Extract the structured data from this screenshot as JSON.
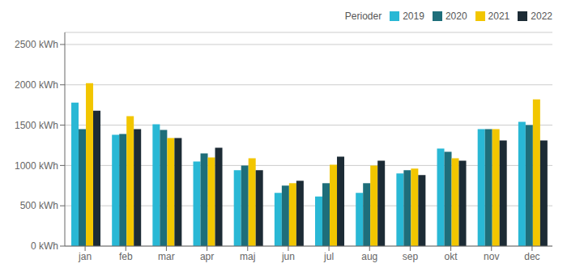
{
  "chart_data": {
    "type": "bar",
    "legend_title": "Perioder",
    "categories": [
      "jan",
      "feb",
      "mar",
      "apr",
      "maj",
      "jun",
      "jul",
      "aug",
      "sep",
      "okt",
      "nov",
      "dec"
    ],
    "series": [
      {
        "name": "2019",
        "color": "#29B8D5",
        "values": [
          1780,
          1380,
          1510,
          1050,
          940,
          660,
          615,
          660,
          900,
          1210,
          1450,
          1540
        ]
      },
      {
        "name": "2020",
        "color": "#1E6E7A",
        "values": [
          1450,
          1390,
          1440,
          1150,
          1000,
          750,
          780,
          780,
          940,
          1170,
          1450,
          1500
        ]
      },
      {
        "name": "2021",
        "color": "#F2C600",
        "values": [
          2020,
          1610,
          1340,
          1100,
          1090,
          780,
          1010,
          1000,
          960,
          1090,
          1450,
          1820
        ]
      },
      {
        "name": "2022",
        "color": "#1C2B35",
        "values": [
          1680,
          1450,
          1340,
          1220,
          940,
          810,
          1110,
          1060,
          880,
          1060,
          1310,
          1310
        ]
      }
    ],
    "ylim": [
      0,
      2650
    ],
    "yticks": [
      {
        "value": 0,
        "label": "0 kWh"
      },
      {
        "value": 500,
        "label": "500 kWh"
      },
      {
        "value": 1000,
        "label": "1000 kWh"
      },
      {
        "value": 1500,
        "label": "1500 kWh"
      },
      {
        "value": 2000,
        "label": "2000 kWh"
      },
      {
        "value": 2500,
        "label": "2500 kWh"
      }
    ],
    "grid": true,
    "legend": "upper right"
  }
}
